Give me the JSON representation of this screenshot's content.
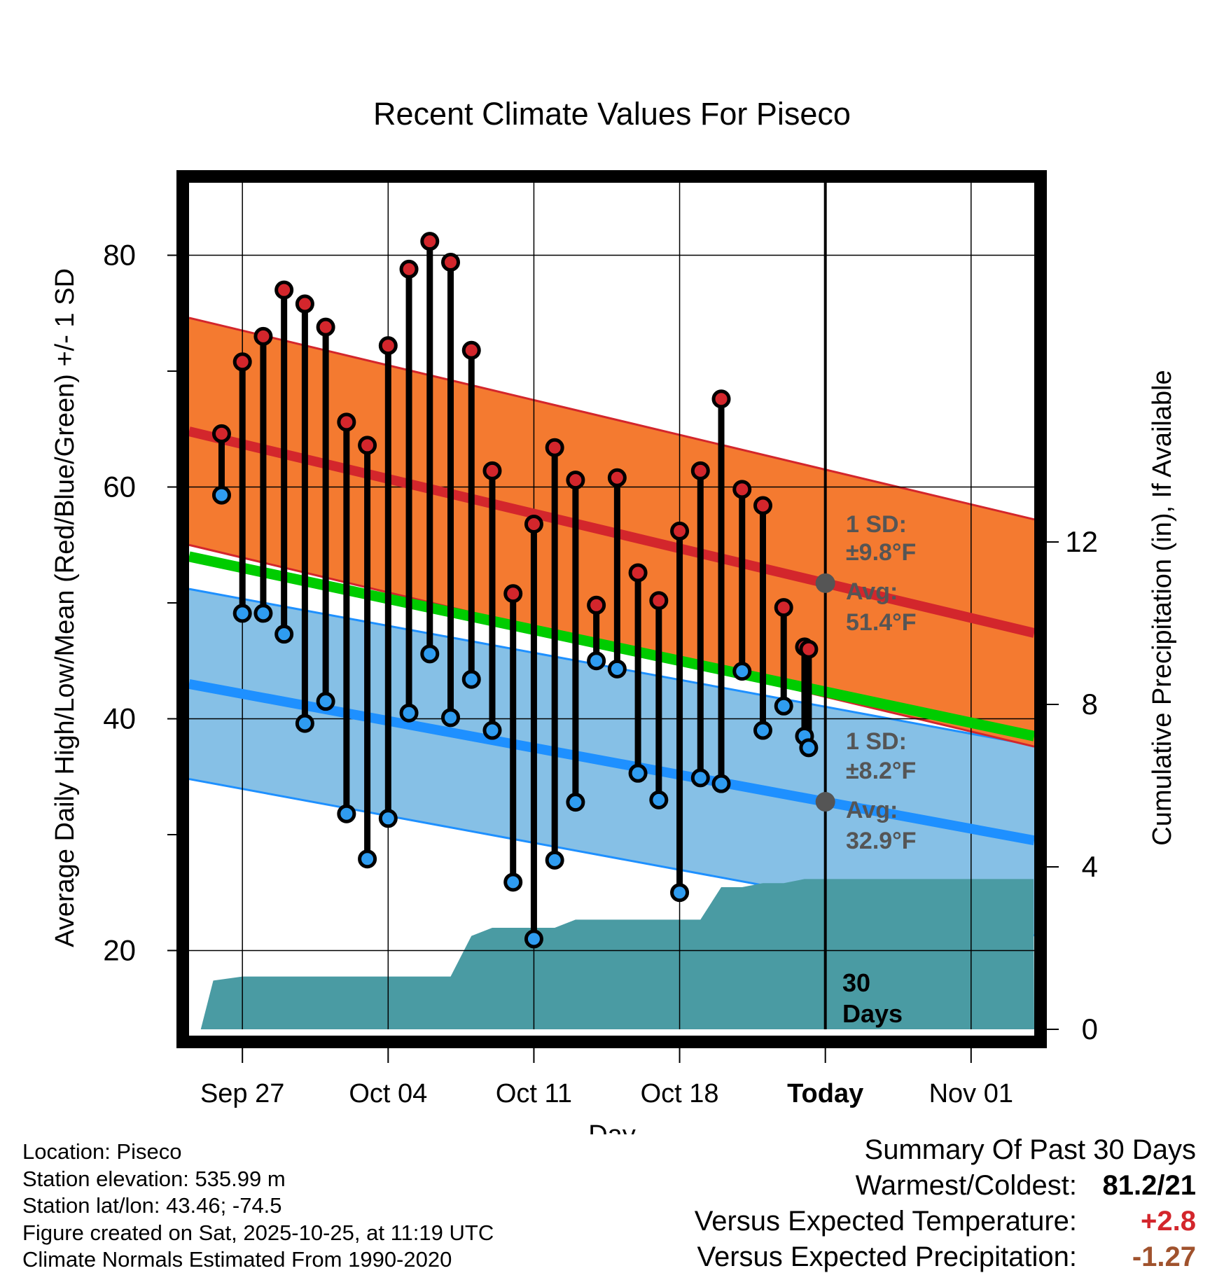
{
  "chart_data": {
    "type": "climate-range",
    "title": "Recent Climate Values For Piseco",
    "xlabel": "Day",
    "ylabel_left": "Average Daily High/Low/Mean (Red/Blue/Green) +/- 1 SD",
    "ylabel_right": "Cumulative Precipitation (in), If Available",
    "ylim_left": [
      13.2,
      86.8
    ],
    "ylim_right": [
      0,
      21
    ],
    "yticks_left": [
      20,
      40,
      60,
      80
    ],
    "yticks_right": [
      0,
      4,
      8,
      12
    ],
    "xlim": [
      0,
      41
    ],
    "xticks": [
      {
        "x": 3,
        "label": "Sep 27"
      },
      {
        "x": 10,
        "label": "Oct 04"
      },
      {
        "x": 17,
        "label": "Oct 11"
      },
      {
        "x": 24,
        "label": "Oct 18"
      },
      {
        "x": 31,
        "label": "Today"
      },
      {
        "x": 38,
        "label": "Nov 01"
      }
    ],
    "today_x": 31,
    "normal_high": {
      "start": 64.8,
      "end": 47.4,
      "sd": 9.8
    },
    "normal_low": {
      "start": 43.0,
      "end": 29.5,
      "sd": 8.2
    },
    "normal_mean": {
      "start": 54.0,
      "end": 38.5
    },
    "days": [
      2,
      3,
      4,
      5,
      6,
      7,
      8,
      9,
      10,
      11,
      12,
      13,
      14,
      15,
      16,
      17,
      18,
      19,
      20,
      21,
      22,
      23,
      24,
      25,
      26,
      27,
      28,
      29,
      30
    ],
    "highs": [
      64.6,
      70.8,
      73.0,
      77.0,
      75.8,
      73.8,
      65.6,
      63.6,
      72.2,
      78.8,
      81.2,
      79.4,
      71.8,
      61.4,
      50.8,
      56.8,
      63.4,
      60.6,
      49.8,
      60.8,
      52.6,
      50.2,
      56.2,
      61.4,
      67.6,
      59.8,
      58.4,
      49.6,
      46.2
    ],
    "lows": [
      59.3,
      49.1,
      49.1,
      47.3,
      39.6,
      41.5,
      31.8,
      27.9,
      31.4,
      40.5,
      45.6,
      40.1,
      43.4,
      39.0,
      25.9,
      21.0,
      27.8,
      32.8,
      45.0,
      44.3,
      35.3,
      33.0,
      25.0,
      34.9,
      34.4,
      44.1,
      39.0,
      41.1,
      38.5
    ],
    "extra_day": {
      "x": 31,
      "high": 46.0,
      "low": 37.5
    },
    "precip_x": [
      1,
      1.6,
      3,
      13,
      14,
      15,
      16,
      18,
      19,
      20,
      25,
      26,
      27,
      28,
      29,
      30,
      41
    ],
    "precip_y": [
      0,
      1.2,
      1.3,
      1.3,
      2.3,
      2.5,
      2.5,
      2.5,
      2.7,
      2.7,
      2.7,
      3.5,
      3.5,
      3.6,
      3.6,
      3.7,
      3.7
    ],
    "annotations": {
      "high_sd_label": "1 SD:",
      "high_sd_value": "±9.8°F",
      "high_avg_label": "Avg:",
      "high_avg_value": "51.4°F",
      "low_sd_label": "1 SD:",
      "low_sd_value": "±8.2°F",
      "low_avg_label": "Avg:",
      "low_avg_value": "32.9°F",
      "days_count": "30",
      "days_word": "Days"
    },
    "colors": {
      "high_band": "#F47A30",
      "high_line": "#D3262C",
      "low_band": "#86C0E6",
      "low_line": "#1E90FF",
      "mean_line": "#00CC00",
      "precip": "#4A9BA3",
      "high_dot": "#D3262C",
      "low_dot": "#2F9CF0"
    }
  },
  "info": {
    "location": "Location: Piseco",
    "elevation": "Station elevation: 535.99 m",
    "latlon": "Station lat/lon: 43.46; -74.5",
    "created": "Figure created on Sat, 2025-10-25, at 11:19 UTC",
    "normals": "Climate Normals Estimated From 1990-2020"
  },
  "summary": {
    "title": "Summary Of Past 30 Days",
    "warm_cold_label": "Warmest/Coldest:",
    "warm_cold_value": "81.2/21",
    "temp_label": "Versus Expected Temperature:",
    "temp_value": "+2.8",
    "temp_color": "#D3262C",
    "precip_label": "Versus Expected Precipitation:",
    "precip_value": "-1.27",
    "precip_color": "#A0522D"
  }
}
